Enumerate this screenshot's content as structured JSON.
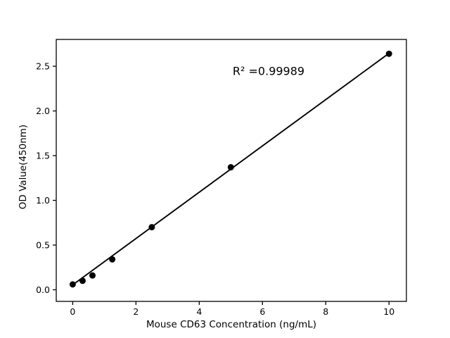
{
  "figure": {
    "background_color": "#ffffff",
    "foreground_color": "#000000"
  },
  "chart_data": {
    "type": "scatter",
    "title": "",
    "xlabel": "Mouse CD63 Concentration (ng/mL)",
    "ylabel": "OD Value(450nm)",
    "annotation": "R² =0.99989",
    "x": [
      0,
      0.3125,
      0.625,
      1.25,
      2.5,
      5,
      10
    ],
    "y": [
      0.06,
      0.1,
      0.16,
      0.34,
      0.7,
      1.37,
      2.64
    ],
    "trendline": {
      "x": [
        0,
        10
      ],
      "y": [
        0.055,
        2.645
      ]
    },
    "xlim": [
      -0.52,
      10.55
    ],
    "ylim": [
      -0.13,
      2.8
    ],
    "x_ticks": [
      0,
      2,
      4,
      6,
      8,
      10
    ],
    "x_tick_labels": [
      "0",
      "2",
      "4",
      "6",
      "8",
      "10"
    ],
    "y_ticks": [
      0.0,
      0.5,
      1.0,
      1.5,
      2.0,
      2.5
    ],
    "y_tick_labels": [
      "0.0",
      "0.5",
      "1.0",
      "1.5",
      "2.0",
      "2.5"
    ],
    "grid": false,
    "legend": null,
    "marker_color": "#000000",
    "line_color": "#000000",
    "marker_radius_px": 4.5
  }
}
